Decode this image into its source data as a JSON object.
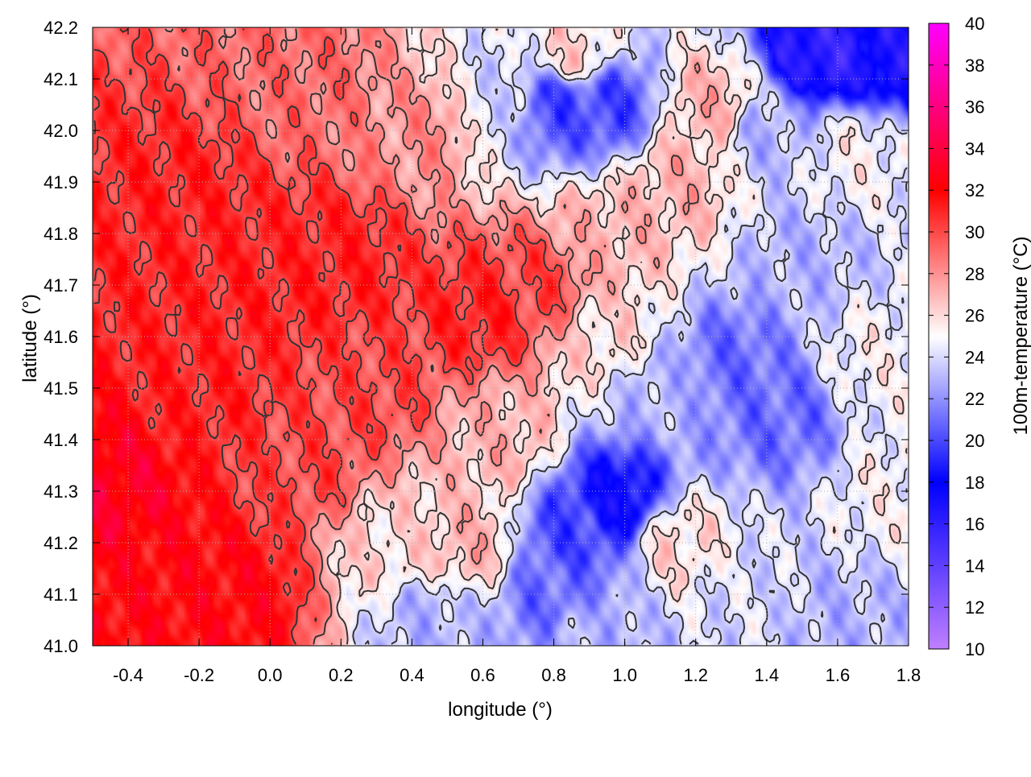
{
  "chart_data": {
    "type": "heatmap",
    "title": "",
    "xlabel": "longitude (°)",
    "ylabel": "latitude (°)",
    "colorbar_label": "100m-temperature (°C)",
    "xlim": [
      -0.5,
      1.8
    ],
    "ylim": [
      41.0,
      42.2
    ],
    "xticks": [
      -0.4,
      -0.2,
      0.0,
      0.2,
      0.4,
      0.6,
      0.8,
      1.0,
      1.2,
      1.4,
      1.6,
      1.8
    ],
    "xtick_labels": [
      "-0.4",
      "-0.2",
      "0.0",
      "0.2",
      "0.4",
      "0.6",
      "0.8",
      "1.0",
      "1.2",
      "1.4",
      "1.6",
      "1.8"
    ],
    "yticks": [
      41.0,
      41.1,
      41.2,
      41.3,
      41.4,
      41.5,
      41.6,
      41.7,
      41.8,
      41.9,
      42.0,
      42.1,
      42.2
    ],
    "ytick_labels": [
      "41.0",
      "41.1",
      "41.2",
      "41.3",
      "41.4",
      "41.5",
      "41.6",
      "41.7",
      "41.8",
      "41.9",
      "42.0",
      "42.1",
      "42.2"
    ],
    "colorbar_range": [
      10,
      40
    ],
    "colorbar_ticks": [
      10,
      12,
      14,
      16,
      18,
      20,
      22,
      24,
      26,
      28,
      30,
      32,
      34,
      36,
      38,
      40
    ],
    "colorbar_tick_labels": [
      "10",
      "12",
      "14",
      "16",
      "18",
      "20",
      "22",
      "24",
      "26",
      "28",
      "30",
      "32",
      "34",
      "36",
      "38",
      "40"
    ],
    "colormap": [
      {
        "value": 10,
        "color": "#c080ff"
      },
      {
        "value": 18,
        "color": "#0000ff"
      },
      {
        "value": 25,
        "color": "#ffffff"
      },
      {
        "value": 32,
        "color": "#ff0000"
      },
      {
        "value": 40,
        "color": "#ff00ff"
      }
    ],
    "grid": true,
    "contours": true,
    "contour_color": "#333333",
    "temperature_field": [
      {
        "lon": -0.45,
        "lat": 41.3,
        "temp": 33
      },
      {
        "lon": -0.3,
        "lat": 41.15,
        "temp": 32
      },
      {
        "lon": -0.1,
        "lat": 41.1,
        "temp": 32
      },
      {
        "lon": -0.2,
        "lat": 41.5,
        "temp": 31
      },
      {
        "lon": 0.0,
        "lat": 41.7,
        "temp": 31
      },
      {
        "lon": -0.25,
        "lat": 41.85,
        "temp": 31
      },
      {
        "lon": 0.2,
        "lat": 41.75,
        "temp": 31
      },
      {
        "lon": 0.6,
        "lat": 41.65,
        "temp": 31
      },
      {
        "lon": 0.75,
        "lat": 41.7,
        "temp": 30
      },
      {
        "lon": 0.3,
        "lat": 41.5,
        "temp": 30
      },
      {
        "lon": 0.1,
        "lat": 41.35,
        "temp": 30
      },
      {
        "lon": 0.1,
        "lat": 42.1,
        "temp": 29
      },
      {
        "lon": 0.45,
        "lat": 42.0,
        "temp": 28
      },
      {
        "lon": 0.95,
        "lat": 41.8,
        "temp": 27
      },
      {
        "lon": 0.55,
        "lat": 41.2,
        "temp": 27
      },
      {
        "lon": 0.35,
        "lat": 41.2,
        "temp": 26
      },
      {
        "lon": 0.45,
        "lat": 41.05,
        "temp": 23
      },
      {
        "lon": 0.65,
        "lat": 42.05,
        "temp": 24
      },
      {
        "lon": 0.8,
        "lat": 42.05,
        "temp": 20
      },
      {
        "lon": 0.95,
        "lat": 42.05,
        "temp": 20
      },
      {
        "lon": 0.85,
        "lat": 42.15,
        "temp": 26
      },
      {
        "lon": 1.25,
        "lat": 42.05,
        "temp": 27
      },
      {
        "lon": 1.4,
        "lat": 42.0,
        "temp": 23
      },
      {
        "lon": 1.55,
        "lat": 42.15,
        "temp": 16
      },
      {
        "lon": 1.75,
        "lat": 42.15,
        "temp": 17
      },
      {
        "lon": 1.65,
        "lat": 41.95,
        "temp": 25
      },
      {
        "lon": 1.15,
        "lat": 41.9,
        "temp": 27
      },
      {
        "lon": 1.5,
        "lat": 41.75,
        "temp": 23
      },
      {
        "lon": 1.3,
        "lat": 41.55,
        "temp": 21
      },
      {
        "lon": 1.45,
        "lat": 41.45,
        "temp": 21
      },
      {
        "lon": 1.1,
        "lat": 41.5,
        "temp": 23
      },
      {
        "lon": 1.7,
        "lat": 41.55,
        "temp": 25
      },
      {
        "lon": 1.75,
        "lat": 41.3,
        "temp": 25
      },
      {
        "lon": 0.98,
        "lat": 41.28,
        "temp": 18
      },
      {
        "lon": 0.85,
        "lat": 41.22,
        "temp": 20
      },
      {
        "lon": 0.8,
        "lat": 41.1,
        "temp": 21
      },
      {
        "lon": 1.15,
        "lat": 41.2,
        "temp": 26
      },
      {
        "lon": 1.35,
        "lat": 41.1,
        "temp": 24
      },
      {
        "lon": 1.6,
        "lat": 41.05,
        "temp": 23
      },
      {
        "lon": 0.9,
        "lat": 41.02,
        "temp": 23
      },
      {
        "lon": 0.65,
        "lat": 41.4,
        "temp": 27
      },
      {
        "lon": 0.95,
        "lat": 41.6,
        "temp": 26
      }
    ]
  }
}
